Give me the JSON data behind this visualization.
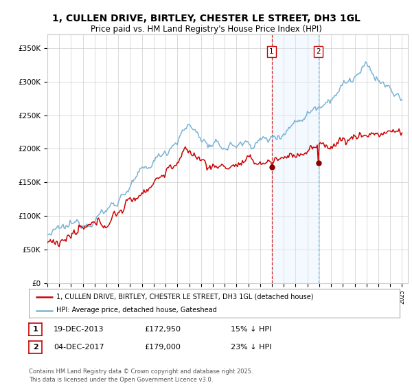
{
  "title": "1, CULLEN DRIVE, BIRTLEY, CHESTER LE STREET, DH3 1GL",
  "subtitle": "Price paid vs. HM Land Registry's House Price Index (HPI)",
  "title_fontsize": 10,
  "subtitle_fontsize": 8.5,
  "ylabel_ticks": [
    "£0",
    "£50K",
    "£100K",
    "£150K",
    "£200K",
    "£250K",
    "£300K",
    "£350K"
  ],
  "ytick_values": [
    0,
    50000,
    100000,
    150000,
    200000,
    250000,
    300000,
    350000
  ],
  "ylim": [
    0,
    370000
  ],
  "xlim_start": 1995.0,
  "xlim_end": 2025.5,
  "marker1_x": 2013.97,
  "marker1_y": 172950,
  "marker1_label": "1",
  "marker2_x": 2017.92,
  "marker2_y": 179000,
  "marker2_label": "2",
  "annotation1_date": "19-DEC-2013",
  "annotation1_price": "£172,950",
  "annotation1_hpi": "15% ↓ HPI",
  "annotation2_date": "04-DEC-2017",
  "annotation2_price": "£179,000",
  "annotation2_hpi": "23% ↓ HPI",
  "legend_line1": "1, CULLEN DRIVE, BIRTLEY, CHESTER LE STREET, DH3 1GL (detached house)",
  "legend_line2": "HPI: Average price, detached house, Gateshead",
  "footer": "Contains HM Land Registry data © Crown copyright and database right 2025.\nThis data is licensed under the Open Government Licence v3.0.",
  "hpi_color": "#7ab3d4",
  "price_color": "#cc0000",
  "shading_color": "#ddeeff",
  "grid_color": "#cccccc",
  "bg_color": "#ffffff",
  "vline1_color": "#cc0000",
  "vline2_color": "#7ab3d4"
}
